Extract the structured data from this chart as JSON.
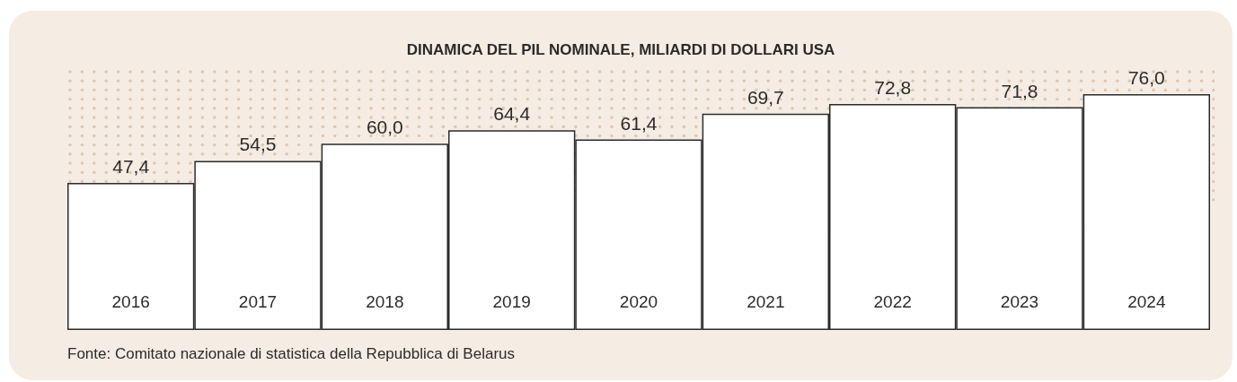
{
  "chart_data": {
    "type": "bar",
    "title": "DINAMICA DEL PIL NOMINALE, MILIARDI DI DOLLARI USA",
    "categories": [
      "2016",
      "2017",
      "2018",
      "2019",
      "2020",
      "2021",
      "2022",
      "2023",
      "2024"
    ],
    "values": [
      47.4,
      54.5,
      60.0,
      64.4,
      61.4,
      69.7,
      72.8,
      71.8,
      76.0
    ],
    "value_labels": [
      "47,4",
      "54,5",
      "60,0",
      "64,4",
      "61,4",
      "69,7",
      "72,8",
      "71,8",
      "76,0"
    ],
    "color": "#ffffff",
    "tick_labels": "x",
    "annotations": [
      "Fonte: Comitato nazionale di statistica della Repubblica di Belarus"
    ]
  }
}
